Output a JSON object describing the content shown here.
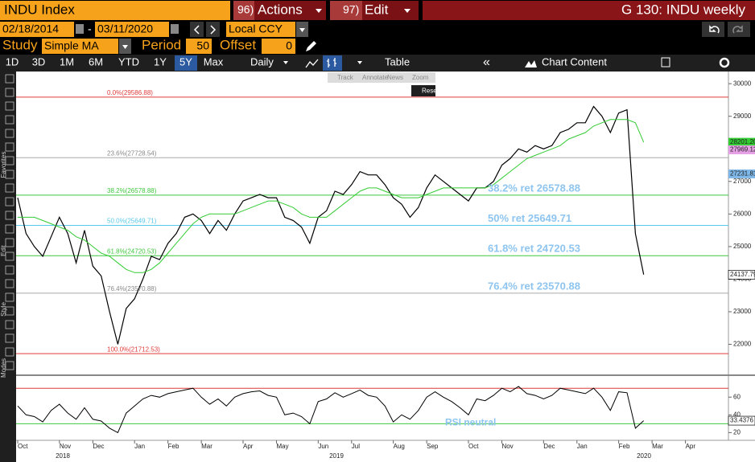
{
  "header": {
    "security": "INDU Index",
    "actions_num": "96)",
    "actions": "Actions",
    "edit_num": "97)",
    "edit": "Edit",
    "page": "G 130: INDU weekly"
  },
  "range": {
    "start": "02/18/2014",
    "separator": "-",
    "end": "03/11/2020",
    "currency": "Local CCY"
  },
  "study": {
    "label": "Study",
    "name": "Simple MA",
    "period_label": "Period",
    "period": "50",
    "offset_label": "Offset",
    "offset": "0"
  },
  "toolbar": {
    "periods": [
      "1D",
      "3D",
      "1M",
      "6M",
      "YTD",
      "1Y",
      "5Y",
      "Max"
    ],
    "selected": "5Y",
    "frequency": "Daily",
    "table": "Table",
    "collapse": "«",
    "content": "Chart Content"
  },
  "tools": {
    "buttons": [
      "Track",
      "Annotate",
      "News",
      "Zoom"
    ],
    "reset": "Reset",
    "side_labels": [
      "Favorites",
      "Edit",
      "Style",
      "Modes"
    ]
  },
  "chart_data": [
    {
      "type": "line",
      "categories": [
        "Oct",
        null,
        null,
        null,
        null,
        "Nov",
        null,
        null,
        null,
        "Dec",
        null,
        null,
        null,
        null,
        "Jan",
        null,
        null,
        null,
        "Feb",
        null,
        null,
        null,
        "Mar",
        null,
        null,
        null,
        null,
        "Apr",
        null,
        null,
        null,
        "May",
        null,
        null,
        null,
        null,
        "Jun",
        null,
        null,
        null,
        "Jul",
        null,
        null,
        null,
        null,
        "Aug",
        null,
        null,
        null,
        "Sep",
        null,
        null,
        null,
        null,
        "Oct",
        null,
        null,
        null,
        "Nov",
        null,
        null,
        null,
        null,
        "Dec",
        null,
        null,
        null,
        "Jan",
        null,
        null,
        null,
        null,
        "Feb",
        null,
        null,
        null,
        "Mar",
        null,
        null,
        null,
        "Apr"
      ],
      "year_labels": [
        "2018",
        "2019",
        "2020"
      ],
      "series": [
        {
          "color": "#000000",
          "values": [
            26500,
            25400,
            25000,
            24700,
            25300,
            25900,
            25400,
            24500,
            25500,
            24400,
            24100,
            23000,
            22000,
            23100,
            23400,
            24000,
            24700,
            24600,
            25100,
            25400,
            25900,
            26000,
            25800,
            25400,
            25800,
            25500,
            26000,
            26400,
            26500,
            26600,
            26500,
            26500,
            25900,
            25800,
            25600,
            25100,
            25900,
            26100,
            26700,
            26600,
            26900,
            27300,
            27200,
            27200,
            26900,
            26500,
            26300,
            25900,
            26200,
            26800,
            27200,
            27000,
            26800,
            26600,
            26400,
            26800,
            26800,
            27000,
            27500,
            27700,
            28000,
            27900,
            28100,
            28000,
            28100,
            28500,
            28600,
            28800,
            28800,
            29300,
            29000,
            28500,
            29100,
            29200,
            25400,
            24137.79,
            null,
            null,
            null,
            null,
            null
          ]
        },
        {
          "color": "#33cc33",
          "values": [
            25900,
            25900,
            25900,
            25800,
            25700,
            25600,
            25500,
            25300,
            25200,
            25000,
            24800,
            24700,
            24500,
            24300,
            24200,
            24200,
            24300,
            24500,
            24800,
            25100,
            25400,
            25700,
            25900,
            26000,
            26000,
            26000,
            26000,
            26100,
            26200,
            26300,
            26400,
            26400,
            26300,
            26200,
            26000,
            25900,
            25900,
            25900,
            26100,
            26300,
            26500,
            26700,
            26800,
            26800,
            26700,
            26600,
            26500,
            26500,
            26500,
            26600,
            26700,
            26800,
            26800,
            26800,
            26800,
            26800,
            26800,
            26900,
            27100,
            27300,
            27500,
            27700,
            27800,
            27900,
            28000,
            28100,
            28300,
            28400,
            28500,
            28700,
            28800,
            28900,
            28900,
            28900,
            28800,
            28200,
            null,
            null,
            null,
            null,
            null
          ]
        }
      ],
      "ylim": [
        21100,
        30300
      ],
      "yticks": [
        22000,
        23000,
        24000,
        25000,
        26000,
        27000,
        28000,
        29000,
        30000
      ],
      "fib_levels": [
        {
          "value": 29586.88,
          "label": "0.0%(29586.88)",
          "color": "#e03a3a"
        },
        {
          "value": 27728.54,
          "label": "23.6%(27728.54)",
          "color": "#aaaaaa"
        },
        {
          "value": 26578.88,
          "label": "38.2%(26578.88)",
          "color": "#3fc73f"
        },
        {
          "value": 25649.71,
          "label": "50.0%(25649.71)",
          "color": "#5ac8ea"
        },
        {
          "value": 24720.53,
          "label": "61.8%(24720.53)",
          "color": "#3fc73f"
        },
        {
          "value": 23570.88,
          "label": "76.4%(23570.88)",
          "color": "#aaaaaa"
        },
        {
          "value": 21712.53,
          "label": "100.0%(21712.53)",
          "color": "#e03a3a"
        }
      ],
      "annotations": [
        "38.2% ret 26578.88",
        "50% ret 25649.71",
        "61.8% ret 24720.53",
        "76.4% ret 23570.88"
      ],
      "annotation_color": "#8ec5f0",
      "price_tags": [
        {
          "value": 28201.2,
          "label": "28201.20",
          "color": "#33cc33"
        },
        {
          "value": 27969.12,
          "label": "27969.12",
          "color": "#e6a0e6"
        },
        {
          "value": 27231.81,
          "label": "27231.81",
          "color": "#7fb8e8"
        }
      ]
    },
    {
      "type": "line",
      "series": [
        {
          "color": "#000000",
          "values": [
            50,
            40,
            38,
            32,
            45,
            52,
            42,
            35,
            48,
            35,
            33,
            25,
            20,
            42,
            50,
            58,
            62,
            60,
            64,
            66,
            68,
            70,
            60,
            52,
            58,
            50,
            60,
            64,
            66,
            67,
            62,
            60,
            40,
            42,
            38,
            30,
            55,
            58,
            65,
            60,
            64,
            68,
            62,
            60,
            50,
            32,
            40,
            35,
            45,
            60,
            66,
            60,
            55,
            48,
            40,
            58,
            56,
            62,
            70,
            66,
            72,
            64,
            62,
            58,
            62,
            70,
            68,
            66,
            64,
            70,
            60,
            45,
            66,
            65,
            25,
            33.4376,
            null,
            null,
            null,
            null,
            null
          ]
        }
      ],
      "ylim": [
        14,
        82
      ],
      "yticks": [
        20,
        40,
        60
      ],
      "levels": [
        {
          "value": 70,
          "color": "#e03a3a"
        },
        {
          "value": 30,
          "color": "#3fc73f"
        }
      ],
      "annotation": "RSI neutral",
      "annotation_color": "#8ec5f0"
    }
  ]
}
